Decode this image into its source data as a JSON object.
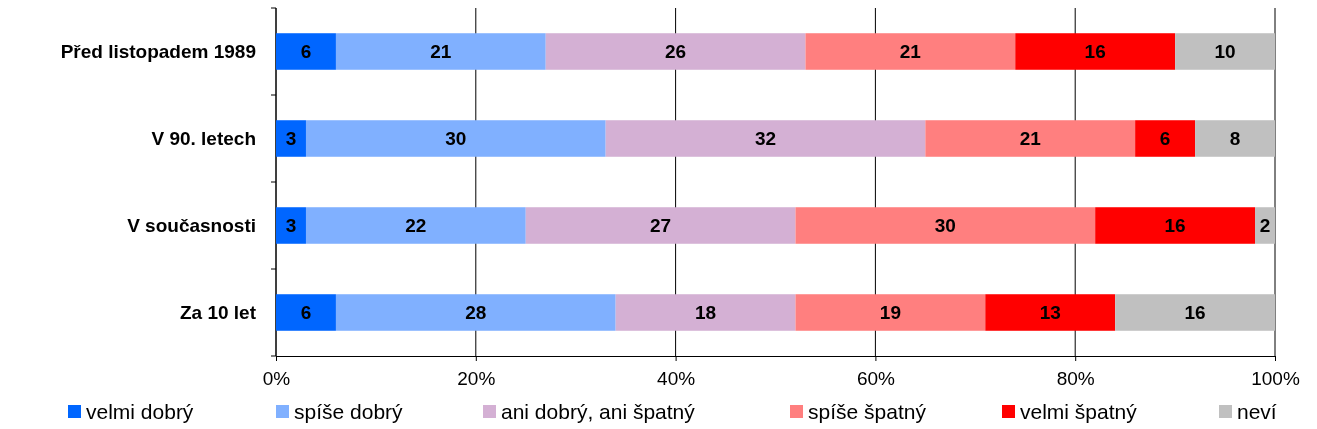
{
  "chart_data": {
    "type": "bar",
    "orientation": "horizontal",
    "stacked": true,
    "data_labels": true,
    "grid": "x",
    "legend": "bottom",
    "categories": [
      "Před listopadem 1989",
      "V 90. letech",
      "V současnosti",
      "Za 10 let"
    ],
    "xlim": [
      0,
      100
    ],
    "xticks": [
      {
        "value": 0,
        "label": "0%"
      },
      {
        "value": 20,
        "label": "20%"
      },
      {
        "value": 40,
        "label": "40%"
      },
      {
        "value": 60,
        "label": "60%"
      },
      {
        "value": 80,
        "label": "80%"
      },
      {
        "value": 100,
        "label": "100%"
      }
    ],
    "series": [
      {
        "name": "velmi dobrý",
        "color": "#0066ff",
        "values": [
          6,
          3,
          3,
          6
        ]
      },
      {
        "name": "spíše dobrý",
        "color": "#80b0ff",
        "values": [
          21,
          30,
          22,
          28
        ]
      },
      {
        "name": "ani dobrý, ani špatný",
        "color": "#d4b0d4",
        "values": [
          26,
          32,
          27,
          18
        ]
      },
      {
        "name": "spíše špatný",
        "color": "#ff7f7f",
        "values": [
          21,
          21,
          30,
          19
        ]
      },
      {
        "name": "velmi špatný",
        "color": "#ff0000",
        "values": [
          16,
          6,
          16,
          13
        ]
      },
      {
        "name": "neví",
        "color": "#c0c0c0",
        "values": [
          10,
          8,
          2,
          16
        ]
      }
    ]
  }
}
